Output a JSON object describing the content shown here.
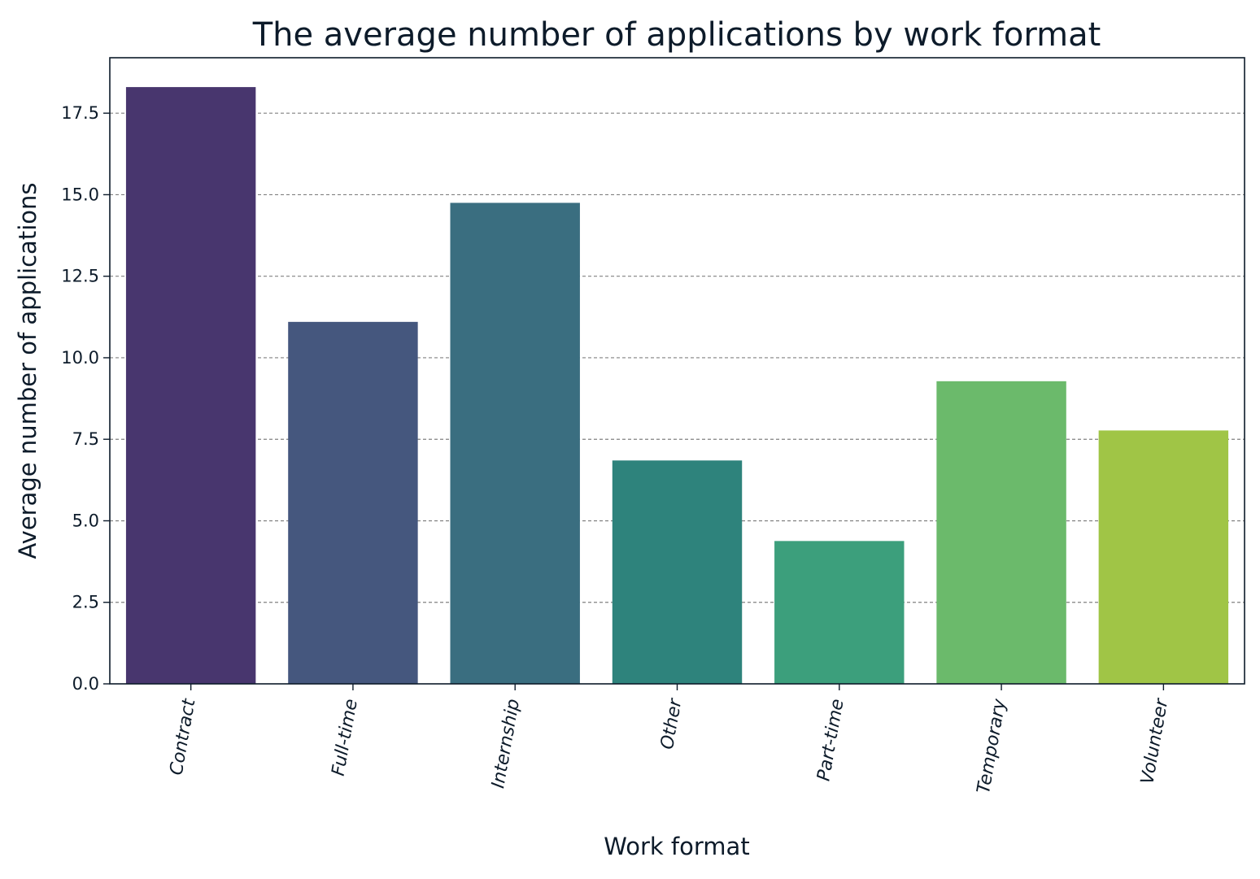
{
  "chart_data": {
    "type": "bar",
    "title": "The average number of applications by work format",
    "xlabel": "Work format",
    "ylabel": "Average number of applications",
    "categories": [
      "Contract",
      "Full-time",
      "Internship",
      "Other",
      "Part-time",
      "Temporary",
      "Volunteer"
    ],
    "values": [
      18.3,
      11.1,
      14.75,
      6.85,
      4.38,
      9.28,
      7.77
    ],
    "colors": [
      "#48366e",
      "#45577e",
      "#3a6e80",
      "#2e837c",
      "#3c9f7c",
      "#6bba6b",
      "#a0c546"
    ],
    "ylim": [
      0,
      19.2
    ],
    "yticks": [
      "0.0",
      "2.5",
      "5.0",
      "7.5",
      "10.0",
      "12.5",
      "15.0",
      "17.5"
    ],
    "ytick_values": [
      0,
      2.5,
      5,
      7.5,
      10,
      12.5,
      15,
      17.5
    ],
    "grid": "y",
    "legend": "none"
  }
}
